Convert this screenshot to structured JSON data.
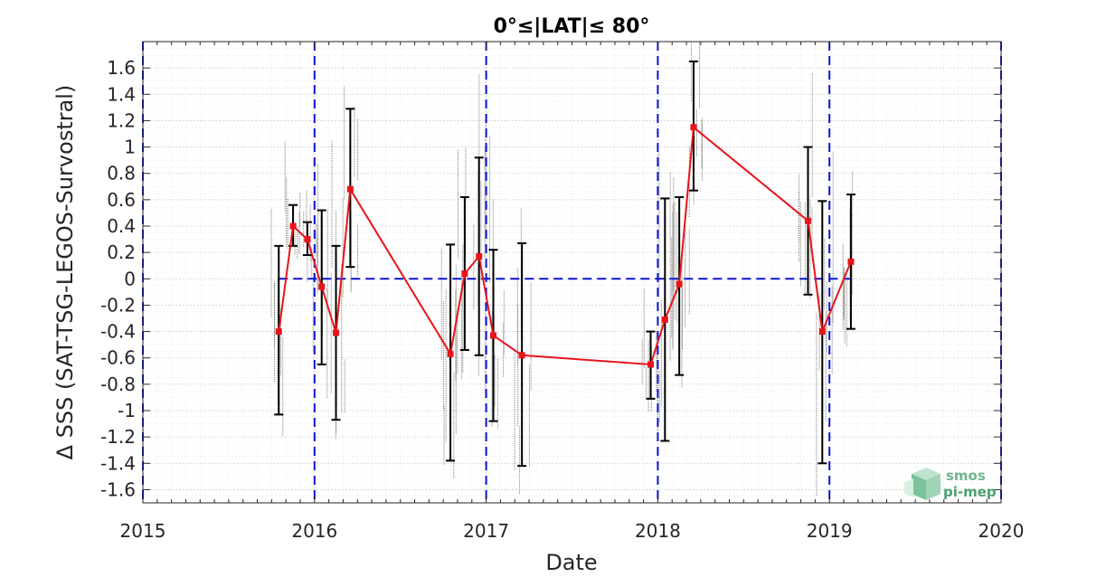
{
  "chart_data": {
    "type": "line",
    "title": "0°≤|LAT|≤ 80°",
    "xlabel": "Date",
    "ylabel": "Δ SSS (SAT-TSG-LEGOS-Survostral)",
    "xlim": [
      2015,
      2020
    ],
    "ylim": [
      -1.7,
      1.8
    ],
    "x_ticks": [
      "2015",
      "2016",
      "2017",
      "2018",
      "2019",
      "2020"
    ],
    "y_ticks": [
      1.6,
      1.4,
      1.2,
      1,
      0.8,
      0.6,
      0.4,
      0.2,
      0,
      -0.2,
      -0.4,
      -0.6,
      -0.8,
      -1,
      -1.2,
      -1.4,
      -1.6
    ],
    "grid": true,
    "year_markers": [
      2015,
      2016,
      2017,
      2018,
      2019,
      2020
    ],
    "zero_line": 0,
    "colors": {
      "series": "#e8141a",
      "year_lines": "#0a14d6",
      "zero_line": "#0a14d6",
      "error_bars": "#000000",
      "scatter": "#555555"
    },
    "series": [
      {
        "x": [
          "2015-10",
          "2015-11",
          "2015-12",
          "2016-01",
          "2016-02",
          "2016-03",
          "2016-10",
          "2016-11",
          "2016-12",
          "2017-01",
          "2017-03",
          "2017-12",
          "2018-01",
          "2018-02",
          "2018-03",
          "2018-11",
          "2018-12",
          "2019-02"
        ],
        "y": [
          -0.4,
          0.4,
          0.3,
          -0.06,
          -0.41,
          0.68,
          -0.57,
          0.04,
          0.17,
          -0.43,
          -0.58,
          -0.65,
          -0.31,
          -0.04,
          1.15,
          0.44,
          -0.4,
          0.13
        ],
        "err_low": [
          -1.03,
          0.25,
          0.18,
          -0.65,
          -1.07,
          0.09,
          -1.38,
          -0.54,
          -0.58,
          -1.08,
          -1.42,
          -0.91,
          -1.23,
          -0.73,
          0.67,
          -0.12,
          -1.4,
          -0.38
        ],
        "err_high": [
          0.25,
          0.56,
          0.43,
          0.52,
          0.25,
          1.29,
          0.26,
          0.62,
          0.92,
          0.22,
          0.27,
          -0.4,
          0.61,
          0.62,
          1.65,
          1.0,
          0.59,
          0.64
        ]
      }
    ]
  },
  "logo": {
    "line1": "smos",
    "line2": "pi-mep"
  }
}
